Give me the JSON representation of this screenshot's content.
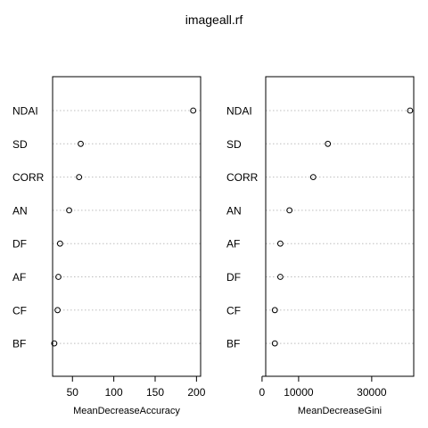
{
  "chart_data": {
    "title": "imageall.rf",
    "type": "scatter",
    "panels": [
      {
        "xlabel": "MeanDecreaseAccuracy",
        "ylabel": "",
        "xlim": [
          26,
          205
        ],
        "xticks": [
          50,
          100,
          150,
          200
        ],
        "xtick_labels": [
          "50",
          "100",
          "150",
          "200"
        ],
        "grid": true,
        "categories": [
          "NDAI",
          "SD",
          "CORR",
          "AN",
          "DF",
          "AF",
          "CF",
          "BF"
        ],
        "values": [
          196,
          60,
          58,
          46,
          35,
          33,
          32,
          28
        ]
      },
      {
        "xlabel": "MeanDecreaseGini",
        "ylabel": "",
        "xlim": [
          1000,
          41500
        ],
        "xticks": [
          0,
          10000,
          30000
        ],
        "xtick_labels": [
          "0",
          "10000",
          "30000"
        ],
        "grid": true,
        "categories": [
          "NDAI",
          "SD",
          "CORR",
          "AN",
          "AF",
          "DF",
          "CF",
          "BF"
        ],
        "values": [
          40500,
          18000,
          14000,
          7500,
          5000,
          5000,
          3500,
          3500
        ]
      }
    ]
  }
}
